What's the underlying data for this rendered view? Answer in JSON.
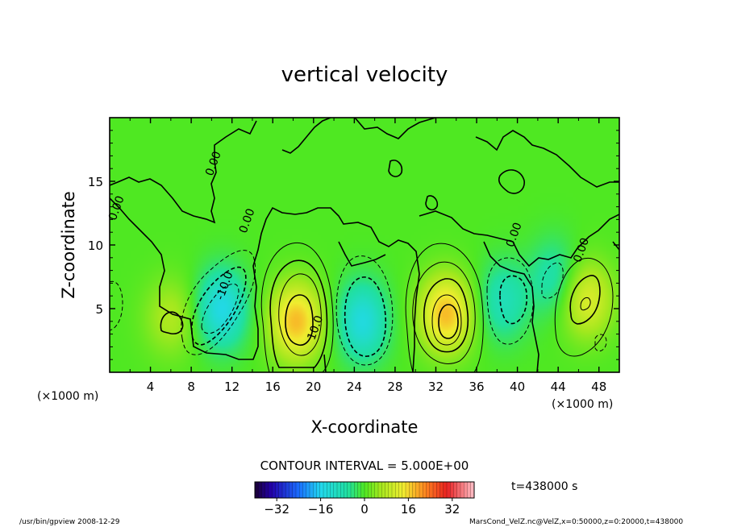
{
  "chart_data": {
    "type": "heatmap",
    "title": "vertical velocity",
    "xlabel": "X-coordinate",
    "ylabel": "Z-coordinate",
    "xlim": [
      0,
      50
    ],
    "ylim": [
      0,
      20
    ],
    "x_ticks": [
      4,
      8,
      12,
      16,
      20,
      24,
      28,
      32,
      36,
      40,
      44,
      48
    ],
    "y_ticks": [
      5,
      10,
      15
    ],
    "x_unit_label_left": "(×1000 m)",
    "x_unit_label_right": "(×1000 m)",
    "contour_interval_text": "CONTOUR INTERVAL = 5.000E+00",
    "time_text": "t=438000 s",
    "colorbar": {
      "range": [
        -40,
        40
      ],
      "ticks": [
        -32,
        -16,
        0,
        16,
        32
      ]
    },
    "contour_labels": [
      {
        "text": "0.00",
        "x": 1.0,
        "y": 12.8
      },
      {
        "text": "0.00",
        "x": 10.5,
        "y": 16.3
      },
      {
        "text": "0.00",
        "x": 13.8,
        "y": 11.8
      },
      {
        "text": "-10.0",
        "x": 11.6,
        "y": 6.7
      },
      {
        "text": "10.0",
        "x": 20.5,
        "y": 3.4
      },
      {
        "text": "0.00",
        "x": 40.0,
        "y": 10.7
      },
      {
        "text": "0.00",
        "x": 46.6,
        "y": 9.5
      }
    ],
    "features": [
      {
        "kind": "min",
        "x": 11.0,
        "z": 5.0,
        "value": -15
      },
      {
        "kind": "min",
        "x": 24.8,
        "z": 4.0,
        "value": -14
      },
      {
        "kind": "min",
        "x": 38.6,
        "z": 5.6,
        "value": -9
      },
      {
        "kind": "min",
        "x": 43.6,
        "z": 7.4,
        "value": -8
      },
      {
        "kind": "max",
        "x": 6.0,
        "z": 4.3,
        "value": 7
      },
      {
        "kind": "max",
        "x": 18.3,
        "z": 4.0,
        "value": 18
      },
      {
        "kind": "max",
        "x": 33.0,
        "z": 4.6,
        "value": 18
      },
      {
        "kind": "max",
        "x": 46.8,
        "z": 5.7,
        "value": 12
      }
    ],
    "footer_left": "/usr/bin/gpview  2008-12-29",
    "footer_right": "MarsCond_VelZ.nc@VelZ,x=0:50000,z=0:20000,t=438000"
  }
}
